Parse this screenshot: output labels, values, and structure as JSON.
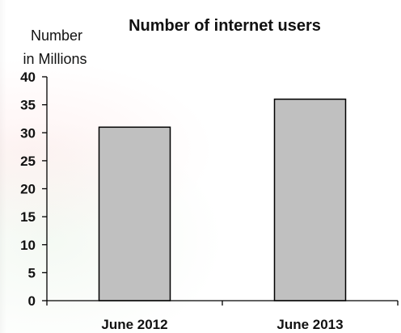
{
  "chart_data": {
    "type": "bar",
    "title": "Number of internet users",
    "ylabel_lines": [
      "Number",
      "in Millions"
    ],
    "categories": [
      "June 2012",
      "June 2013"
    ],
    "values": [
      31,
      36
    ],
    "ylim": [
      0,
      40
    ],
    "yticks": [
      "0",
      "5",
      "10",
      "15",
      "20",
      "25",
      "30",
      "35",
      "40"
    ],
    "grid": false,
    "bar_color": "#c0c0c0",
    "bar_edge_color": "#000000"
  }
}
